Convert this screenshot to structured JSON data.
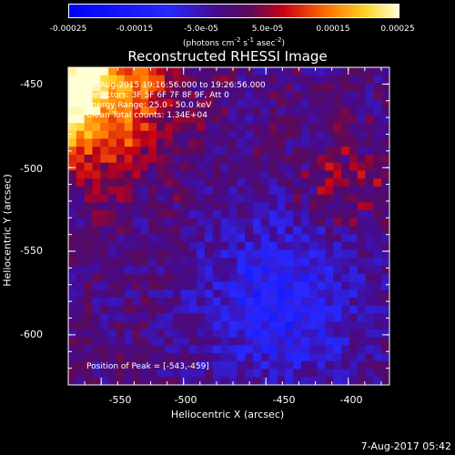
{
  "colorbar": {
    "ticks": [
      "-0.00025",
      "-0.00015",
      "-5.0e-05",
      "5.0e-05",
      "0.00015",
      "0.00025"
    ],
    "units_base": "(photons cm",
    "units_exp1": "-2",
    "units_mid": " s",
    "units_exp2": "-1",
    "units_mid2": " asec",
    "units_exp3": "-2",
    "units_end": ")"
  },
  "chart_data": {
    "type": "heatmap",
    "title": "Reconstructed RHESSI Image",
    "xlabel": "Heliocentric X (arcsec)",
    "ylabel": "Heliocentric Y (arcsec)",
    "xlim": [
      -570,
      -375
    ],
    "ylim": [
      -630,
      -440
    ],
    "x_ticks": [
      "-550",
      "-500",
      "-450",
      "-400"
    ],
    "x_tick_values": [
      -550,
      -500,
      -450,
      -400
    ],
    "y_ticks": [
      "-450",
      "-500",
      "-550",
      "-600"
    ],
    "y_tick_values": [
      -450,
      -500,
      -550,
      -600
    ],
    "value_range": [
      -0.00025,
      0.00025
    ],
    "peak": [
      -543,
      -459
    ]
  },
  "annotations": {
    "time": "15-Aug-2015 19:16:56.000 to 19:26:56.000",
    "detectors": "Detectors: 3F 5F 6F 7F 8F 9F, Att 0",
    "energy": "Energy Range: 25.0 - 50.0 keV",
    "clean": "Clean     Total counts: 1.34E+04",
    "peak": "Position of Peak = [-543,-459]"
  },
  "timestamp": "7-Aug-2017 05:42",
  "colors": {
    "low": "#1020ff",
    "mid": "#3a0a8a",
    "high": "#ff8800",
    "max": "#ffffc0"
  }
}
